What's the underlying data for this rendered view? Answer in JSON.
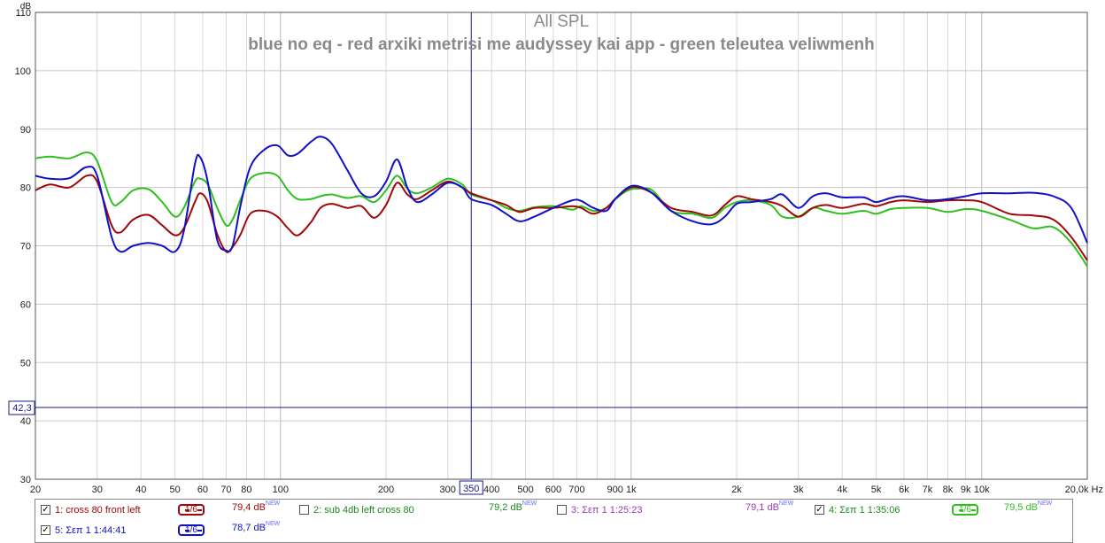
{
  "chart_data": {
    "type": "line",
    "title": "All SPL",
    "subtitle": "blue no eq - red arxiki metrisi me audyssey kai app - green teleutea veliwmenh",
    "ylabel": "dB",
    "xlabel": "Hz",
    "xscale": "log",
    "xlim": [
      20,
      20000
    ],
    "ylim": [
      30,
      110
    ],
    "yticks": [
      30,
      40,
      50,
      60,
      70,
      80,
      90,
      100,
      110
    ],
    "xtick_labels": [
      {
        "v": 20,
        "t": "20"
      },
      {
        "v": 30,
        "t": "30"
      },
      {
        "v": 40,
        "t": "40"
      },
      {
        "v": 50,
        "t": "50"
      },
      {
        "v": 60,
        "t": "60"
      },
      {
        "v": 70,
        "t": "70"
      },
      {
        "v": 80,
        "t": "80"
      },
      {
        "v": 100,
        "t": "100"
      },
      {
        "v": 200,
        "t": "200"
      },
      {
        "v": 300,
        "t": "300"
      },
      {
        "v": 400,
        "t": "400"
      },
      {
        "v": 500,
        "t": "500"
      },
      {
        "v": 600,
        "t": "600"
      },
      {
        "v": 700,
        "t": "700"
      },
      {
        "v": 900,
        "t": "900"
      },
      {
        "v": 1000,
        "t": "1k"
      },
      {
        "v": 2000,
        "t": "2k"
      },
      {
        "v": 3000,
        "t": "3k"
      },
      {
        "v": 4000,
        "t": "4k"
      },
      {
        "v": 5000,
        "t": "5k"
      },
      {
        "v": 6000,
        "t": "6k"
      },
      {
        "v": 7000,
        "t": "7k"
      },
      {
        "v": 8000,
        "t": "8k"
      },
      {
        "v": 9000,
        "t": "9k"
      },
      {
        "v": 10000,
        "t": "10k"
      },
      {
        "v": 20000,
        "t": "20,0k Hz"
      }
    ],
    "cursor": {
      "x": 350,
      "x_label": "350",
      "y": 42.3,
      "y_label": "42,3"
    },
    "series": [
      {
        "name": "blue",
        "color": "#1010c8",
        "points": [
          [
            20,
            82.0
          ],
          [
            22,
            81.5
          ],
          [
            25,
            81.6
          ],
          [
            28,
            83.5
          ],
          [
            30,
            82.0
          ],
          [
            33,
            71.5
          ],
          [
            35,
            69.0
          ],
          [
            38,
            70.0
          ],
          [
            42,
            70.5
          ],
          [
            46,
            70.0
          ],
          [
            50,
            69.0
          ],
          [
            53,
            72.5
          ],
          [
            57,
            84.0
          ],
          [
            59,
            85.2
          ],
          [
            62,
            81.0
          ],
          [
            66,
            71.0
          ],
          [
            70,
            69.2
          ],
          [
            73,
            70.0
          ],
          [
            77,
            77.0
          ],
          [
            82,
            83.5
          ],
          [
            90,
            86.5
          ],
          [
            98,
            87.2
          ],
          [
            105,
            85.5
          ],
          [
            112,
            85.8
          ],
          [
            122,
            87.8
          ],
          [
            130,
            88.7
          ],
          [
            140,
            87.5
          ],
          [
            155,
            83.0
          ],
          [
            170,
            79.0
          ],
          [
            185,
            78.5
          ],
          [
            200,
            81.0
          ],
          [
            215,
            84.8
          ],
          [
            230,
            80.0
          ],
          [
            245,
            77.5
          ],
          [
            270,
            78.8
          ],
          [
            300,
            80.8
          ],
          [
            330,
            80.0
          ],
          [
            350,
            78.0
          ],
          [
            400,
            77.0
          ],
          [
            440,
            75.5
          ],
          [
            480,
            74.2
          ],
          [
            530,
            75.0
          ],
          [
            600,
            76.5
          ],
          [
            680,
            77.8
          ],
          [
            720,
            77.7
          ],
          [
            780,
            76.5
          ],
          [
            850,
            76.0
          ],
          [
            900,
            78.0
          ],
          [
            980,
            80.0
          ],
          [
            1050,
            80.2
          ],
          [
            1150,
            79.0
          ],
          [
            1300,
            76.0
          ],
          [
            1500,
            74.2
          ],
          [
            1700,
            73.7
          ],
          [
            1850,
            75.0
          ],
          [
            2000,
            77.2
          ],
          [
            2200,
            77.5
          ],
          [
            2500,
            78.0
          ],
          [
            2700,
            78.8
          ],
          [
            3000,
            76.5
          ],
          [
            3300,
            78.5
          ],
          [
            3600,
            79.0
          ],
          [
            4000,
            78.3
          ],
          [
            4600,
            78.3
          ],
          [
            5000,
            77.5
          ],
          [
            5500,
            78.2
          ],
          [
            6000,
            78.5
          ],
          [
            7000,
            77.8
          ],
          [
            8000,
            78.0
          ],
          [
            9000,
            78.5
          ],
          [
            10000,
            79.0
          ],
          [
            12000,
            79.0
          ],
          [
            14000,
            79.1
          ],
          [
            16000,
            78.5
          ],
          [
            18000,
            76.5
          ],
          [
            20000,
            70.5
          ]
        ]
      },
      {
        "name": "red",
        "color": "#a00808",
        "points": [
          [
            20,
            79.5
          ],
          [
            22,
            80.5
          ],
          [
            25,
            80.0
          ],
          [
            28,
            82.0
          ],
          [
            30,
            81.0
          ],
          [
            33,
            73.5
          ],
          [
            35,
            72.3
          ],
          [
            38,
            74.5
          ],
          [
            42,
            75.3
          ],
          [
            46,
            73.5
          ],
          [
            50,
            71.8
          ],
          [
            53,
            73.0
          ],
          [
            57,
            77.5
          ],
          [
            59,
            79.0
          ],
          [
            62,
            77.5
          ],
          [
            66,
            72.0
          ],
          [
            70,
            69.0
          ],
          [
            73,
            69.8
          ],
          [
            77,
            72.0
          ],
          [
            82,
            75.5
          ],
          [
            90,
            76.0
          ],
          [
            98,
            75.0
          ],
          [
            105,
            73.0
          ],
          [
            112,
            71.8
          ],
          [
            122,
            74.0
          ],
          [
            130,
            76.5
          ],
          [
            140,
            77.2
          ],
          [
            155,
            76.5
          ],
          [
            170,
            76.8
          ],
          [
            185,
            74.8
          ],
          [
            200,
            77.0
          ],
          [
            215,
            80.8
          ],
          [
            230,
            78.8
          ],
          [
            245,
            78.0
          ],
          [
            270,
            79.5
          ],
          [
            300,
            81.0
          ],
          [
            330,
            80.0
          ],
          [
            350,
            79.0
          ],
          [
            400,
            77.8
          ],
          [
            440,
            77.0
          ],
          [
            480,
            75.8
          ],
          [
            530,
            76.5
          ],
          [
            600,
            76.5
          ],
          [
            680,
            76.8
          ],
          [
            720,
            76.5
          ],
          [
            780,
            75.5
          ],
          [
            850,
            76.5
          ],
          [
            900,
            78.0
          ],
          [
            980,
            79.8
          ],
          [
            1050,
            80.0
          ],
          [
            1150,
            79.0
          ],
          [
            1300,
            76.5
          ],
          [
            1500,
            75.8
          ],
          [
            1700,
            75.2
          ],
          [
            1850,
            77.0
          ],
          [
            2000,
            78.5
          ],
          [
            2200,
            78.0
          ],
          [
            2500,
            77.5
          ],
          [
            2700,
            76.8
          ],
          [
            3000,
            75.0
          ],
          [
            3300,
            76.5
          ],
          [
            3600,
            77.0
          ],
          [
            4000,
            76.5
          ],
          [
            4600,
            77.2
          ],
          [
            5000,
            76.8
          ],
          [
            5500,
            77.5
          ],
          [
            6000,
            77.8
          ],
          [
            7000,
            77.5
          ],
          [
            8000,
            77.8
          ],
          [
            9000,
            77.8
          ],
          [
            10000,
            77.5
          ],
          [
            12000,
            75.5
          ],
          [
            14000,
            75.2
          ],
          [
            16000,
            74.5
          ],
          [
            18000,
            71.5
          ],
          [
            20000,
            67.5
          ]
        ]
      },
      {
        "name": "green",
        "color": "#2fbf1f",
        "points": [
          [
            20,
            85.0
          ],
          [
            22,
            85.3
          ],
          [
            25,
            85.0
          ],
          [
            28,
            86.0
          ],
          [
            30,
            84.5
          ],
          [
            33,
            77.5
          ],
          [
            35,
            77.5
          ],
          [
            38,
            79.5
          ],
          [
            42,
            79.7
          ],
          [
            46,
            77.5
          ],
          [
            50,
            75.0
          ],
          [
            53,
            76.5
          ],
          [
            57,
            81.0
          ],
          [
            59,
            81.5
          ],
          [
            62,
            80.5
          ],
          [
            66,
            76.5
          ],
          [
            70,
            73.5
          ],
          [
            73,
            74.5
          ],
          [
            77,
            78.0
          ],
          [
            82,
            81.5
          ],
          [
            90,
            82.5
          ],
          [
            98,
            82.0
          ],
          [
            105,
            79.5
          ],
          [
            112,
            78.0
          ],
          [
            122,
            78.0
          ],
          [
            130,
            78.5
          ],
          [
            140,
            78.8
          ],
          [
            155,
            78.2
          ],
          [
            170,
            78.5
          ],
          [
            185,
            77.5
          ],
          [
            200,
            79.5
          ],
          [
            215,
            82.0
          ],
          [
            230,
            79.8
          ],
          [
            245,
            79.0
          ],
          [
            270,
            80.0
          ],
          [
            300,
            81.5
          ],
          [
            330,
            80.5
          ],
          [
            350,
            78.8
          ],
          [
            400,
            77.8
          ],
          [
            440,
            76.5
          ],
          [
            480,
            76.0
          ],
          [
            530,
            76.6
          ],
          [
            600,
            76.8
          ],
          [
            680,
            76.2
          ],
          [
            720,
            76.8
          ],
          [
            780,
            76.0
          ],
          [
            850,
            76.5
          ],
          [
            900,
            78.0
          ],
          [
            980,
            79.5
          ],
          [
            1050,
            79.8
          ],
          [
            1150,
            79.5
          ],
          [
            1300,
            76.0
          ],
          [
            1500,
            75.5
          ],
          [
            1700,
            74.8
          ],
          [
            1850,
            76.5
          ],
          [
            2000,
            77.5
          ],
          [
            2200,
            77.8
          ],
          [
            2500,
            77.0
          ],
          [
            2700,
            75.0
          ],
          [
            3000,
            75.0
          ],
          [
            3300,
            76.5
          ],
          [
            3600,
            76.0
          ],
          [
            4000,
            75.5
          ],
          [
            4600,
            76.0
          ],
          [
            5000,
            75.5
          ],
          [
            5500,
            76.3
          ],
          [
            6000,
            76.5
          ],
          [
            7000,
            76.5
          ],
          [
            8000,
            75.8
          ],
          [
            9000,
            76.3
          ],
          [
            10000,
            76.0
          ],
          [
            12000,
            74.5
          ],
          [
            14000,
            73.0
          ],
          [
            16000,
            73.2
          ],
          [
            18000,
            70.5
          ],
          [
            20000,
            66.5
          ]
        ]
      }
    ]
  },
  "legend": [
    {
      "id": "row1",
      "checked": true,
      "label": "1: cross 80 front left",
      "color": "#a00808",
      "smoothing": "1/6",
      "value": "79,4 dB",
      "badge": "NEW"
    },
    {
      "id": "row2",
      "checked": false,
      "label": "2: sub 4db left cross 80",
      "color": "#1a8a1a",
      "smoothing": "",
      "value": "79,2 dB",
      "badge": "NEW"
    },
    {
      "id": "row3",
      "checked": false,
      "label": "3: Σεπ 1 1:25:23",
      "color": "#9a3ab0",
      "smoothing": "",
      "value": "79,1 dB",
      "badge": "NEW"
    },
    {
      "id": "row4",
      "checked": true,
      "label": "4: Σεπ 1 1:35:06",
      "color": "#2fbf1f",
      "smoothing": "1/6",
      "value": "79,5 dB",
      "badge": "NEW"
    },
    {
      "id": "row5",
      "checked": true,
      "label": "5: Σεπ 1 1:44:41",
      "color": "#1010c8",
      "smoothing": "1/6",
      "value": "78,7 dB",
      "badge": "NEW"
    }
  ]
}
